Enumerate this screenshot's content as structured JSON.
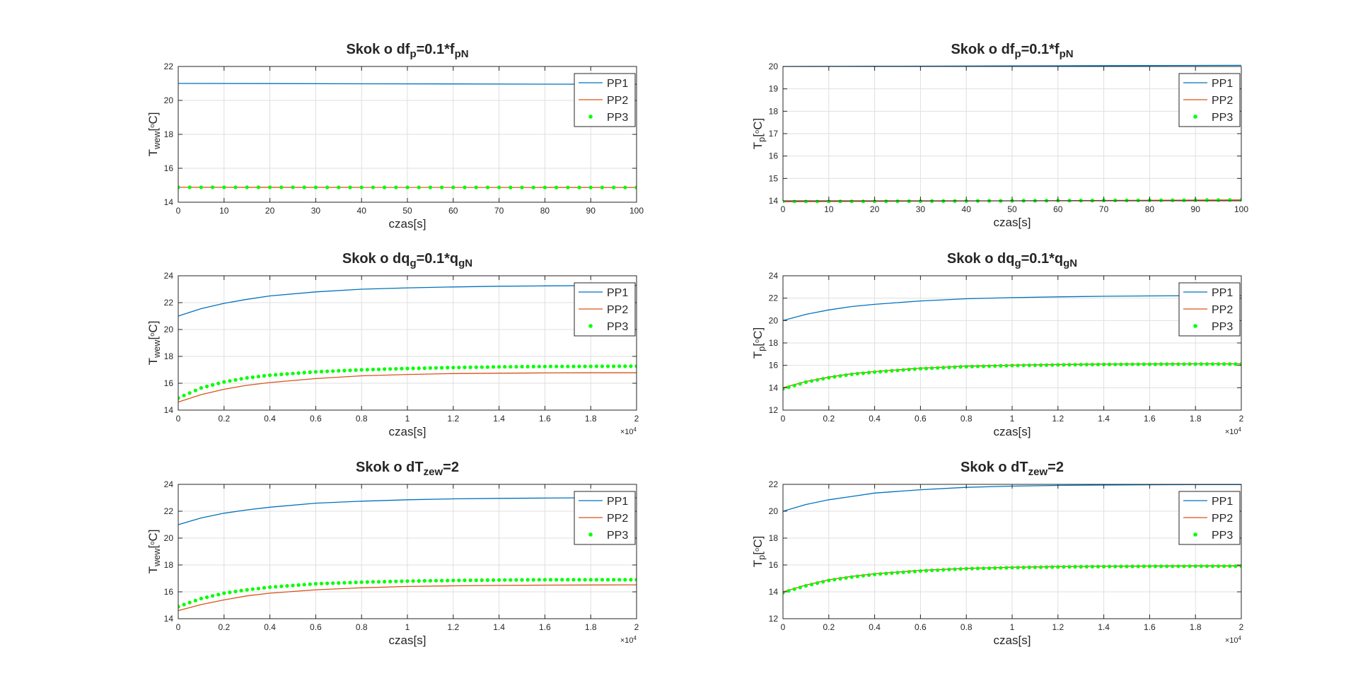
{
  "colors": {
    "pp1": "#0072BD",
    "pp2": "#D95319",
    "pp3": "#00FF00",
    "grid": "#DFDFDF",
    "axis": "#262626",
    "text": "#262626"
  },
  "chart_data": [
    {
      "type": "line",
      "title": "Skok o df_p=0.1*f_pN",
      "title_parts": [
        {
          "text": "Skok o df",
          "sub": false
        },
        {
          "text": "p",
          "sub": true
        },
        {
          "text": "=0.1*f",
          "sub": false
        },
        {
          "text": "pN",
          "sub": true
        }
      ],
      "xlabel": "czas[s]",
      "ylabel": "T_wew[°C]",
      "ylabel_parts": [
        {
          "text": "T",
          "sub": false
        },
        {
          "text": "wew",
          "sub": true
        },
        {
          "text": "[",
          "sub": false
        },
        {
          "text": "o",
          "sup": true
        },
        {
          "text": "C]",
          "sub": false
        }
      ],
      "xlim": [
        0,
        100
      ],
      "ylim": [
        14,
        22
      ],
      "xticks": [
        0,
        10,
        20,
        30,
        40,
        50,
        60,
        70,
        80,
        90,
        100
      ],
      "xtick_labels": [
        "0",
        "10",
        "20",
        "30",
        "40",
        "50",
        "60",
        "70",
        "80",
        "90",
        "100"
      ],
      "yticks": [
        14,
        16,
        18,
        20,
        22
      ],
      "ytick_labels": [
        "14",
        "16",
        "18",
        "20",
        "22"
      ],
      "x_exponent": "",
      "grid": true,
      "legend": {
        "location": "top-right",
        "entries": [
          "PP1",
          "PP2",
          "PP3"
        ]
      },
      "series": [
        {
          "name": "PP1",
          "style": "line",
          "x": [
            0,
            20,
            40,
            60,
            80,
            100
          ],
          "y": [
            21.0,
            20.99,
            20.98,
            20.97,
            20.96,
            20.95
          ]
        },
        {
          "name": "PP2",
          "style": "line",
          "x": [
            0,
            100
          ],
          "y": [
            14.88,
            14.87
          ]
        },
        {
          "name": "PP3",
          "style": "dots",
          "x": [
            0,
            100
          ],
          "y": [
            14.88,
            14.87
          ],
          "count": 41
        }
      ]
    },
    {
      "type": "line",
      "title": "Skok o df_p=0.1*f_pN",
      "title_parts": [
        {
          "text": "Skok o df",
          "sub": false
        },
        {
          "text": "p",
          "sub": true
        },
        {
          "text": "=0.1*f",
          "sub": false
        },
        {
          "text": "pN",
          "sub": true
        }
      ],
      "xlabel": "czas[s]",
      "ylabel": "T_p[°C]",
      "ylabel_parts": [
        {
          "text": "T",
          "sub": false
        },
        {
          "text": "p",
          "sub": true
        },
        {
          "text": "[",
          "sub": false
        },
        {
          "text": "o",
          "sup": true
        },
        {
          "text": "C]",
          "sub": false
        }
      ],
      "xlim": [
        0,
        100
      ],
      "ylim": [
        14,
        20
      ],
      "xticks": [
        0,
        10,
        20,
        30,
        40,
        50,
        60,
        70,
        80,
        90,
        100
      ],
      "xtick_labels": [
        "0",
        "10",
        "20",
        "30",
        "40",
        "50",
        "60",
        "70",
        "80",
        "90",
        "100"
      ],
      "yticks": [
        14,
        15,
        16,
        17,
        18,
        19,
        20
      ],
      "ytick_labels": [
        "14",
        "15",
        "16",
        "17",
        "18",
        "19",
        "20"
      ],
      "x_exponent": "",
      "grid": true,
      "legend": {
        "location": "top-right",
        "entries": [
          "PP1",
          "PP2",
          "PP3"
        ]
      },
      "series": [
        {
          "name": "PP1",
          "style": "line",
          "x": [
            0,
            20,
            40,
            60,
            80,
            100
          ],
          "y": [
            20.0,
            20.01,
            20.02,
            20.03,
            20.04,
            20.05
          ]
        },
        {
          "name": "PP2",
          "style": "line",
          "x": [
            0,
            50,
            100
          ],
          "y": [
            13.96,
            14.0,
            14.04
          ]
        },
        {
          "name": "PP3",
          "style": "dots",
          "x": [
            0,
            50,
            100
          ],
          "y": [
            13.96,
            14.0,
            14.04
          ],
          "count": 41
        }
      ]
    },
    {
      "type": "line",
      "title": "Skok o dq_g=0.1*q_gN",
      "title_parts": [
        {
          "text": "Skok o dq",
          "sub": false
        },
        {
          "text": "g",
          "sub": true
        },
        {
          "text": "=0.1*q",
          "sub": false
        },
        {
          "text": "gN",
          "sub": true
        }
      ],
      "xlabel": "czas[s]",
      "ylabel": "T_wew[°C]",
      "ylabel_parts": [
        {
          "text": "T",
          "sub": false
        },
        {
          "text": "wew",
          "sub": true
        },
        {
          "text": "[",
          "sub": false
        },
        {
          "text": "o",
          "sup": true
        },
        {
          "text": "C]",
          "sub": false
        }
      ],
      "xlim": [
        0,
        2
      ],
      "ylim": [
        14,
        24
      ],
      "xticks": [
        0,
        0.2,
        0.4,
        0.6,
        0.8,
        1,
        1.2,
        1.4,
        1.6,
        1.8,
        2
      ],
      "xtick_labels": [
        "0",
        "0.2",
        "0.4",
        "0.6",
        "0.8",
        "1",
        "1.2",
        "1.4",
        "1.6",
        "1.8",
        "2"
      ],
      "yticks": [
        14,
        16,
        18,
        20,
        22,
        24
      ],
      "ytick_labels": [
        "14",
        "16",
        "18",
        "20",
        "22",
        "24"
      ],
      "x_exponent": "×10^4",
      "grid": true,
      "legend": {
        "location": "top-right",
        "entries": [
          "PP1",
          "PP2",
          "PP3"
        ]
      },
      "series": [
        {
          "name": "PP1",
          "style": "line",
          "x": [
            0,
            0.1,
            0.2,
            0.3,
            0.4,
            0.6,
            0.8,
            1.0,
            1.2,
            1.4,
            1.6,
            1.8,
            2.0
          ],
          "y": [
            21.0,
            21.55,
            21.95,
            22.25,
            22.5,
            22.8,
            23.0,
            23.1,
            23.17,
            23.22,
            23.25,
            23.27,
            23.28
          ]
        },
        {
          "name": "PP2",
          "style": "line",
          "x": [
            0,
            0.1,
            0.2,
            0.3,
            0.4,
            0.6,
            0.8,
            1.0,
            1.2,
            1.4,
            1.6,
            1.8,
            2.0
          ],
          "y": [
            14.6,
            15.15,
            15.55,
            15.85,
            16.05,
            16.35,
            16.55,
            16.65,
            16.72,
            16.75,
            16.77,
            16.78,
            16.78
          ]
        },
        {
          "name": "PP3",
          "style": "dots",
          "x": [
            0,
            0.1,
            0.2,
            0.3,
            0.4,
            0.6,
            0.8,
            1.0,
            1.2,
            1.4,
            1.6,
            1.8,
            2.0
          ],
          "y": [
            14.9,
            15.65,
            16.1,
            16.4,
            16.6,
            16.85,
            17.0,
            17.1,
            17.17,
            17.22,
            17.25,
            17.26,
            17.27
          ],
          "count": 81
        }
      ]
    },
    {
      "type": "line",
      "title": "Skok o dq_g=0.1*q_gN",
      "title_parts": [
        {
          "text": "Skok o dq",
          "sub": false
        },
        {
          "text": "g",
          "sub": true
        },
        {
          "text": "=0.1*q",
          "sub": false
        },
        {
          "text": "gN",
          "sub": true
        }
      ],
      "xlabel": "czas[s]",
      "ylabel": "T_p[°C]",
      "ylabel_parts": [
        {
          "text": "T",
          "sub": false
        },
        {
          "text": "p",
          "sub": true
        },
        {
          "text": "[",
          "sub": false
        },
        {
          "text": "o",
          "sup": true
        },
        {
          "text": "C]",
          "sub": false
        }
      ],
      "xlim": [
        0,
        2
      ],
      "ylim": [
        12,
        24
      ],
      "xticks": [
        0,
        0.2,
        0.4,
        0.6,
        0.8,
        1,
        1.2,
        1.4,
        1.6,
        1.8,
        2
      ],
      "xtick_labels": [
        "0",
        "0.2",
        "0.4",
        "0.6",
        "0.8",
        "1",
        "1.2",
        "1.4",
        "1.6",
        "1.8",
        "2"
      ],
      "yticks": [
        12,
        14,
        16,
        18,
        20,
        22,
        24
      ],
      "ytick_labels": [
        "12",
        "14",
        "16",
        "18",
        "20",
        "22",
        "24"
      ],
      "x_exponent": "×10^4",
      "grid": true,
      "legend": {
        "location": "top-right",
        "entries": [
          "PP1",
          "PP2",
          "PP3"
        ]
      },
      "series": [
        {
          "name": "PP1",
          "style": "line",
          "x": [
            0,
            0.1,
            0.2,
            0.3,
            0.4,
            0.6,
            0.8,
            1.0,
            1.2,
            1.4,
            1.6,
            1.8,
            2.0
          ],
          "y": [
            20.0,
            20.55,
            20.95,
            21.25,
            21.45,
            21.75,
            21.95,
            22.05,
            22.12,
            22.17,
            22.2,
            22.22,
            22.23
          ]
        },
        {
          "name": "PP2",
          "style": "line",
          "x": [
            0,
            0.1,
            0.2,
            0.3,
            0.4,
            0.6,
            0.8,
            1.0,
            1.2,
            1.4,
            1.6,
            1.8,
            2.0
          ],
          "y": [
            14.0,
            14.55,
            14.95,
            15.25,
            15.45,
            15.75,
            15.92,
            16.02,
            16.08,
            16.11,
            16.13,
            16.14,
            16.14
          ]
        },
        {
          "name": "PP3",
          "style": "dots",
          "x": [
            0,
            0.1,
            0.2,
            0.3,
            0.4,
            0.6,
            0.8,
            1.0,
            1.2,
            1.4,
            1.6,
            1.8,
            2.0
          ],
          "y": [
            13.9,
            14.5,
            14.9,
            15.2,
            15.4,
            15.7,
            15.88,
            15.98,
            16.04,
            16.08,
            16.1,
            16.11,
            16.11
          ],
          "count": 81
        }
      ]
    },
    {
      "type": "line",
      "title": "Skok o dT_zew=2",
      "title_parts": [
        {
          "text": "Skok o dT",
          "sub": false
        },
        {
          "text": "zew",
          "sub": true
        },
        {
          "text": "=2",
          "sub": false
        }
      ],
      "xlabel": "czas[s]",
      "ylabel": "T_wew[°C]",
      "ylabel_parts": [
        {
          "text": "T",
          "sub": false
        },
        {
          "text": "wew",
          "sub": true
        },
        {
          "text": "[",
          "sub": false
        },
        {
          "text": "o",
          "sup": true
        },
        {
          "text": "C]",
          "sub": false
        }
      ],
      "xlim": [
        0,
        2
      ],
      "ylim": [
        14,
        24
      ],
      "xticks": [
        0,
        0.2,
        0.4,
        0.6,
        0.8,
        1,
        1.2,
        1.4,
        1.6,
        1.8,
        2
      ],
      "xtick_labels": [
        "0",
        "0.2",
        "0.4",
        "0.6",
        "0.8",
        "1",
        "1.2",
        "1.4",
        "1.6",
        "1.8",
        "2"
      ],
      "yticks": [
        14,
        16,
        18,
        20,
        22,
        24
      ],
      "ytick_labels": [
        "14",
        "16",
        "18",
        "20",
        "22",
        "24"
      ],
      "x_exponent": "×10^4",
      "grid": true,
      "legend": {
        "location": "top-right",
        "entries": [
          "PP1",
          "PP2",
          "PP3"
        ]
      },
      "series": [
        {
          "name": "PP1",
          "style": "line",
          "x": [
            0,
            0.1,
            0.2,
            0.3,
            0.4,
            0.6,
            0.8,
            1.0,
            1.2,
            1.4,
            1.6,
            1.8,
            2.0
          ],
          "y": [
            21.0,
            21.5,
            21.85,
            22.1,
            22.3,
            22.6,
            22.75,
            22.85,
            22.92,
            22.96,
            22.98,
            23.0,
            23.0
          ]
        },
        {
          "name": "PP2",
          "style": "line",
          "x": [
            0,
            0.1,
            0.2,
            0.3,
            0.4,
            0.6,
            0.8,
            1.0,
            1.2,
            1.4,
            1.6,
            1.8,
            2.0
          ],
          "y": [
            14.6,
            15.05,
            15.4,
            15.7,
            15.9,
            16.15,
            16.3,
            16.4,
            16.45,
            16.48,
            16.5,
            16.51,
            16.52
          ]
        },
        {
          "name": "PP3",
          "style": "dots",
          "x": [
            0,
            0.1,
            0.2,
            0.3,
            0.4,
            0.6,
            0.8,
            1.0,
            1.2,
            1.4,
            1.6,
            1.8,
            2.0
          ],
          "y": [
            14.9,
            15.5,
            15.9,
            16.15,
            16.35,
            16.6,
            16.72,
            16.8,
            16.85,
            16.88,
            16.9,
            16.9,
            16.9
          ],
          "count": 81
        }
      ]
    },
    {
      "type": "line",
      "title": "Skok o dT_zew=2",
      "title_parts": [
        {
          "text": "Skok o dT",
          "sub": false
        },
        {
          "text": "zew",
          "sub": true
        },
        {
          "text": "=2",
          "sub": false
        }
      ],
      "xlabel": "czas[s]",
      "ylabel": "T_p[°C]",
      "ylabel_parts": [
        {
          "text": "T",
          "sub": false
        },
        {
          "text": "p",
          "sub": true
        },
        {
          "text": "[",
          "sub": false
        },
        {
          "text": "o",
          "sup": true
        },
        {
          "text": "C]",
          "sub": false
        }
      ],
      "xlim": [
        0,
        2
      ],
      "ylim": [
        12,
        22
      ],
      "xticks": [
        0,
        0.2,
        0.4,
        0.6,
        0.8,
        1,
        1.2,
        1.4,
        1.6,
        1.8,
        2
      ],
      "xtick_labels": [
        "0",
        "0.2",
        "0.4",
        "0.6",
        "0.8",
        "1",
        "1.2",
        "1.4",
        "1.6",
        "1.8",
        "2"
      ],
      "yticks": [
        12,
        14,
        16,
        18,
        20,
        22
      ],
      "ytick_labels": [
        "12",
        "14",
        "16",
        "18",
        "20",
        "22"
      ],
      "x_exponent": "×10^4",
      "grid": true,
      "legend": {
        "location": "top-right",
        "entries": [
          "PP1",
          "PP2",
          "PP3"
        ]
      },
      "series": [
        {
          "name": "PP1",
          "style": "line",
          "x": [
            0,
            0.1,
            0.2,
            0.3,
            0.4,
            0.6,
            0.8,
            1.0,
            1.2,
            1.4,
            1.6,
            1.8,
            2.0
          ],
          "y": [
            20.0,
            20.5,
            20.85,
            21.1,
            21.35,
            21.6,
            21.78,
            21.87,
            21.92,
            21.95,
            21.97,
            21.98,
            21.98
          ]
        },
        {
          "name": "PP2",
          "style": "line",
          "x": [
            0,
            0.1,
            0.2,
            0.3,
            0.4,
            0.6,
            0.8,
            1.0,
            1.2,
            1.4,
            1.6,
            1.8,
            2.0
          ],
          "y": [
            14.0,
            14.5,
            14.9,
            15.15,
            15.35,
            15.6,
            15.75,
            15.83,
            15.88,
            15.9,
            15.92,
            15.93,
            15.93
          ]
        },
        {
          "name": "PP3",
          "style": "dots",
          "x": [
            0,
            0.1,
            0.2,
            0.3,
            0.4,
            0.6,
            0.8,
            1.0,
            1.2,
            1.4,
            1.6,
            1.8,
            2.0
          ],
          "y": [
            13.95,
            14.45,
            14.85,
            15.1,
            15.3,
            15.55,
            15.72,
            15.8,
            15.85,
            15.88,
            15.9,
            15.91,
            15.91
          ],
          "count": 81
        }
      ]
    }
  ]
}
